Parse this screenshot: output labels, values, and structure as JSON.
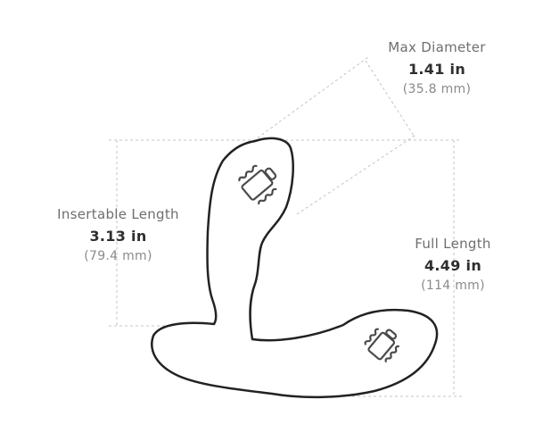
{
  "dimensions": {
    "max_diameter": {
      "name": "Max Diameter",
      "imperial": "1.41 in",
      "metric": "(35.8 mm)"
    },
    "insertable_length": {
      "name": "Insertable Length",
      "imperial": "3.13 in",
      "metric": "(79.4 mm)"
    },
    "full_length": {
      "name": "Full Length",
      "imperial": "4.49 in",
      "metric": "(114 mm)"
    }
  },
  "icons": [
    "vibration-motor-icon",
    "vibration-motor-icon"
  ],
  "colors": {
    "outline": "#222222",
    "guide": "#c4c4c4",
    "icon": "#4a4a4a"
  }
}
